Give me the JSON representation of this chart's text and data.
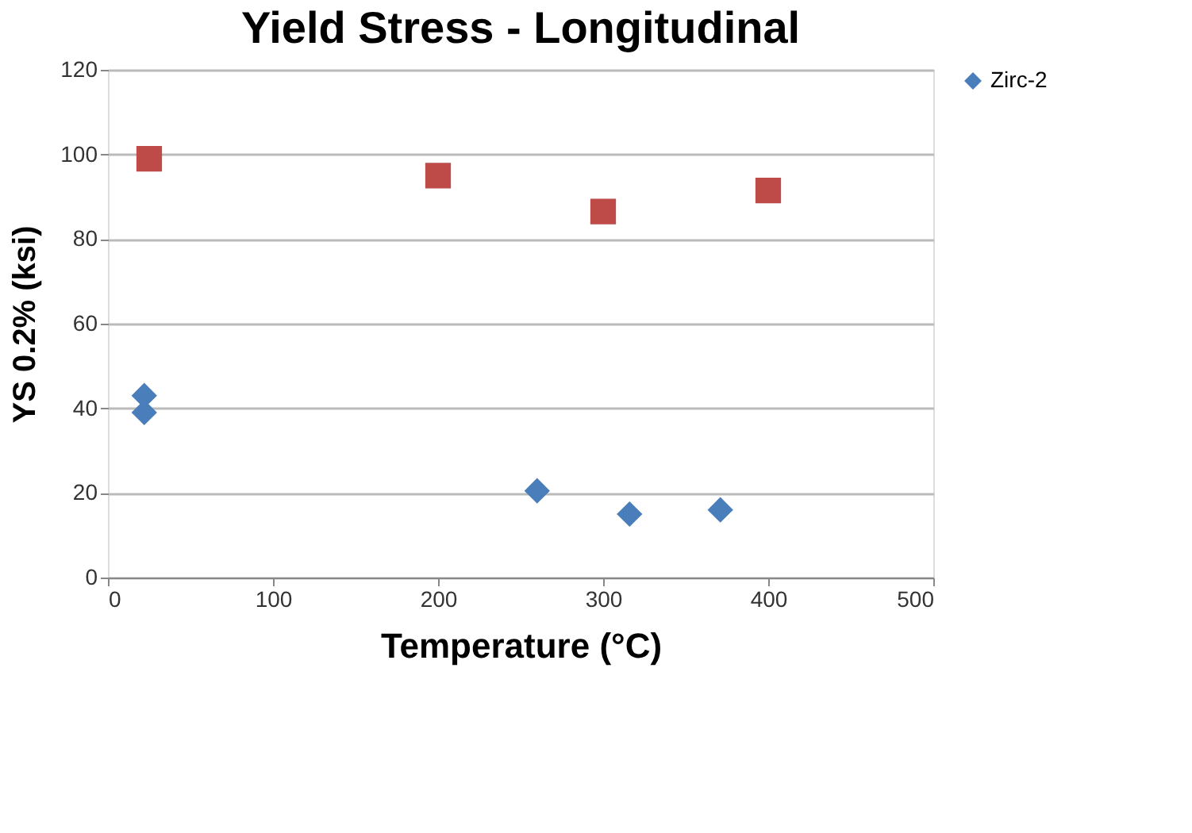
{
  "chart_data": {
    "type": "scatter",
    "title": "Yield Stress - Longitudinal",
    "xlabel": "Temperature (°C)",
    "ylabel": "YS 0.2% (ksi)",
    "series": [
      {
        "name": "Zirc-2",
        "color": "#4a7ebb",
        "marker": "diamond",
        "x": [
          22,
          22,
          260,
          316,
          371
        ],
        "values": [
          43,
          39,
          20.5,
          15,
          16
        ]
      },
      {
        "color": "#be4b48",
        "marker": "square",
        "x": [
          25,
          200,
          300,
          400
        ],
        "values": [
          99,
          95,
          86.5,
          91.5
        ]
      }
    ],
    "xlim": [
      0,
      500
    ],
    "xticks": [
      0,
      100,
      200,
      300,
      400,
      500
    ],
    "ylim": [
      0,
      120
    ],
    "yticks": [
      0,
      20,
      40,
      60,
      80,
      100,
      120
    ],
    "grid": "y",
    "legend": "right"
  }
}
